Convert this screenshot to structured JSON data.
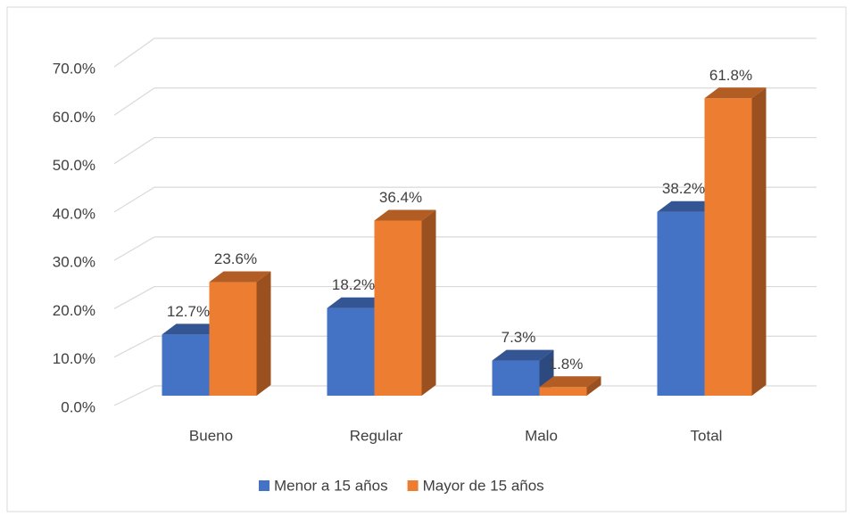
{
  "chart_data": {
    "type": "bar3d",
    "categories": [
      "Bueno",
      "Regular",
      "Malo",
      "Total"
    ],
    "series": [
      {
        "name": "Menor a 15 años",
        "color": "#4472c4",
        "values": [
          12.7,
          18.2,
          7.3,
          38.2
        ],
        "value_labels": [
          "12.7%",
          "18.2%",
          "7.3%",
          "38.2%"
        ]
      },
      {
        "name": "Mayor de 15 años",
        "color": "#ed7d31",
        "values": [
          23.6,
          36.4,
          1.8,
          61.8
        ],
        "value_labels": [
          "23.6%",
          "36.4%",
          "1.8%",
          "61.8%"
        ]
      }
    ],
    "ylim": [
      0,
      70
    ],
    "yticks": [
      {
        "value": 0,
        "label": "0.0%"
      },
      {
        "value": 10,
        "label": "10.0%"
      },
      {
        "value": 20,
        "label": "20.0%"
      },
      {
        "value": 30,
        "label": "30.0%"
      },
      {
        "value": 40,
        "label": "40.0%"
      },
      {
        "value": 50,
        "label": "50.0%"
      },
      {
        "value": 60,
        "label": "60.0%"
      },
      {
        "value": 70,
        "label": "70.0%"
      }
    ],
    "grid": true,
    "legend": "bottom"
  }
}
